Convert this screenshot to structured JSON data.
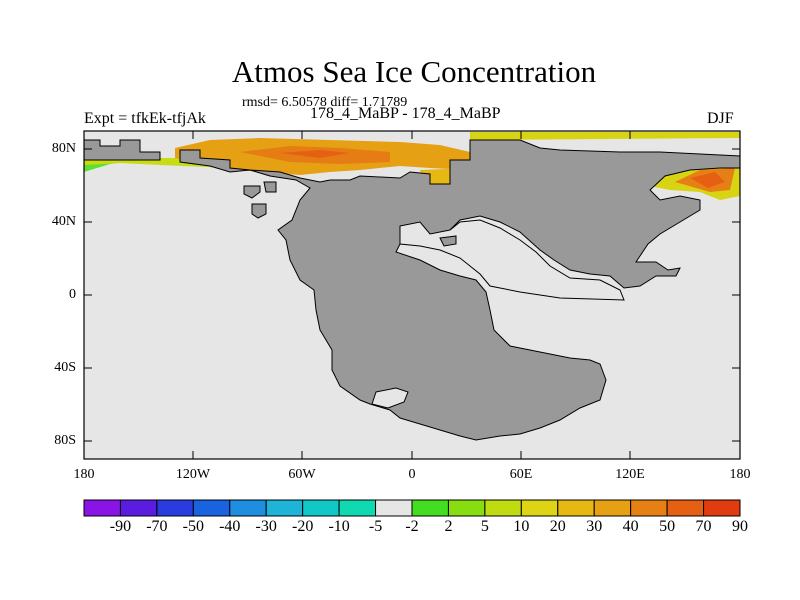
{
  "figure": {
    "title": "Atmos Sea Ice Concentration",
    "stats": "rmsd= 6.50578 diff= 1.71789",
    "experiment": "Expt = tfkEk-tfjAk",
    "period": "178_4_MaBP - 178_4_MaBP",
    "season": "DJF"
  },
  "map": {
    "lat_labels": [
      "80N",
      "40N",
      "0",
      "40S",
      "80S"
    ],
    "lon_labels": [
      "180",
      "120W",
      "60W",
      "0",
      "60E",
      "120E",
      "180"
    ],
    "ocean_color": "#e6e6e6",
    "land_color": "#999999"
  },
  "colorbar": {
    "labels": [
      "-90",
      "-70",
      "-50",
      "-40",
      "-30",
      "-20",
      "-10",
      "-5",
      "-2",
      "2",
      "5",
      "10",
      "20",
      "30",
      "40",
      "50",
      "70",
      "90"
    ],
    "colors": [
      "#8a14e6",
      "#5a1de0",
      "#2a3ce0",
      "#1a63e0",
      "#1e8ee0",
      "#1eb4d8",
      "#10c8c8",
      "#10d8b0",
      "#e6e6e6",
      "#44dd22",
      "#88dd10",
      "#c0dc10",
      "#dcd414",
      "#e6b814",
      "#e6a014",
      "#e68014",
      "#e66014",
      "#e03c10"
    ]
  }
}
